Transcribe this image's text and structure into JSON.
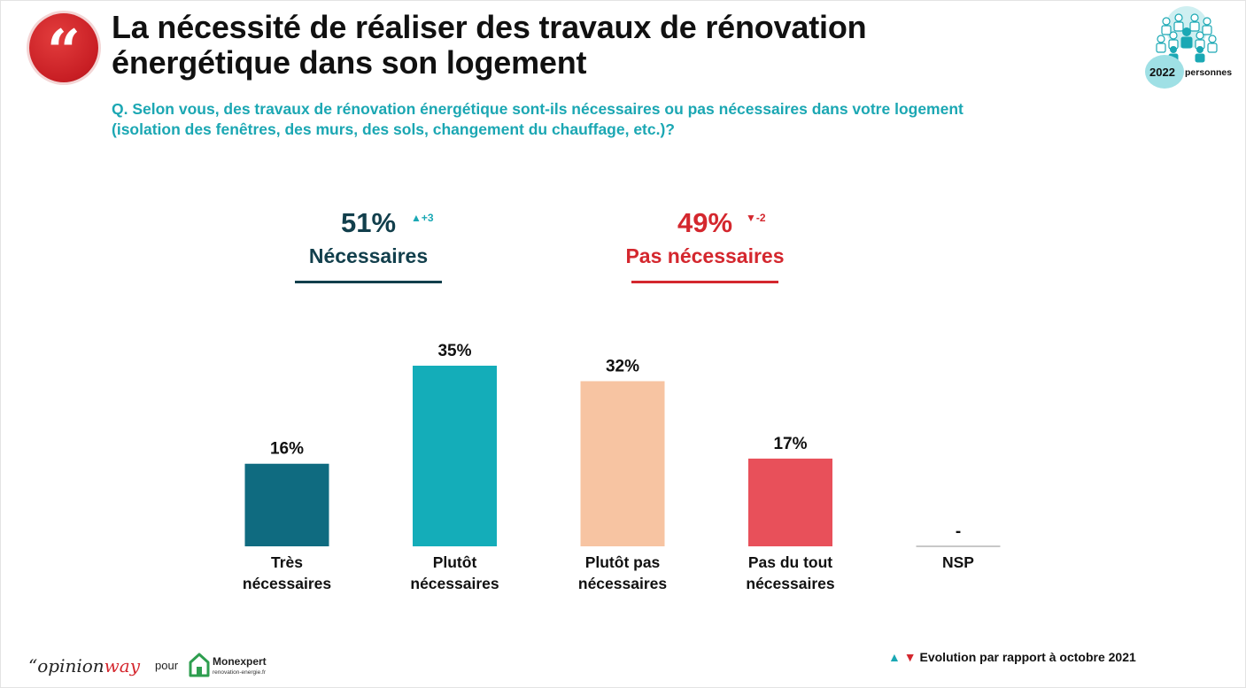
{
  "title": {
    "line1": "La nécessité de réaliser des travaux de rénovation",
    "line2": "énergétique dans son logement"
  },
  "quote_glyph": "“",
  "question": {
    "line1": "Q. Selon vous, des travaux de rénovation énergétique sont-ils nécessaires ou pas nécessaires dans votre logement",
    "line2": "(isolation des fenêtres, des murs, des sols, changement du chauffage, etc.)?"
  },
  "sample": {
    "count": "2022",
    "label": "personnes",
    "icon": "people-icon"
  },
  "groups": {
    "necessaires": {
      "pct": "51%",
      "label": "Nécessaires",
      "evolution": "+3",
      "trend": "up"
    },
    "pas_necessaires": {
      "pct": "49%",
      "label": "Pas nécessaires",
      "evolution": "-2",
      "trend": "down"
    }
  },
  "colors": {
    "dark_teal": "#0f6b80",
    "teal": "#14adb9",
    "peach": "#f7c4a2",
    "red": "#e8505a",
    "nsp": "#c8c8c8",
    "navy_text": "#123f4c",
    "red_text": "#d4272e",
    "question_text": "#1ba7b3"
  },
  "chart_data": {
    "type": "bar",
    "categories": [
      [
        "Très",
        "nécessaires"
      ],
      [
        "Plutôt",
        "nécessaires"
      ],
      [
        "Plutôt pas",
        "nécessaires"
      ],
      [
        "Pas du tout",
        "nécessaires"
      ],
      [
        "NSP"
      ]
    ],
    "values": [
      16,
      35,
      32,
      17,
      0
    ],
    "data_labels": [
      "16%",
      "35%",
      "32%",
      "17%",
      "-"
    ],
    "unit": "%",
    "ylim": [
      0,
      35
    ],
    "grid": false,
    "legend": "none"
  },
  "footer": {
    "brand_prefix": "“opinion",
    "brand_suffix": "way",
    "pour": "pour",
    "partner_name": "Monexpert",
    "partner_sub": "renovation-energie.fr",
    "legend_up": "▲",
    "legend_down": "▼",
    "legend_text": "Evolution par rapport à octobre 2021"
  }
}
